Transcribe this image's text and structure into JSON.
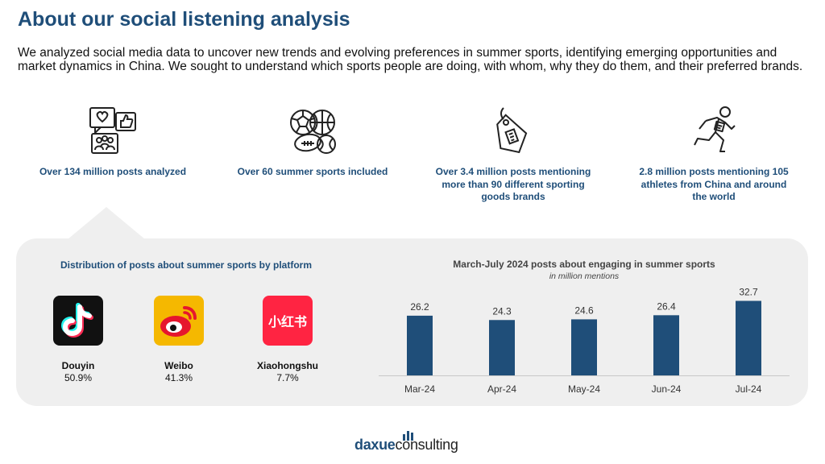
{
  "title": "About our social listening analysis",
  "intro": "We analyzed social media data to uncover new trends and evolving preferences in summer sports, identifying emerging opportunities and market dynamics in China. We sought to understand which sports people are doing, with whom, why they do them, and their preferred brands.",
  "stats": [
    {
      "icon": "social-media-icon",
      "text": "Over 134 million posts analyzed"
    },
    {
      "icon": "sports-balls-icon",
      "text": "Over 60 summer sports included"
    },
    {
      "icon": "price-tag-icon",
      "text": "Over 3.4 million posts mentioning more than 90 different sporting goods brands"
    },
    {
      "icon": "runner-icon",
      "text": "2.8 million posts mentioning 105 athletes from China and around the world"
    }
  ],
  "distribution": {
    "title": "Distribution of posts about summer sports by platform",
    "platforms": [
      {
        "name": "Douyin",
        "share": "50.9%",
        "icon": "douyin-logo-icon"
      },
      {
        "name": "Weibo",
        "share": "41.3%",
        "icon": "weibo-logo-icon"
      },
      {
        "name": "Xiaohongshu",
        "share": "7.7%",
        "icon": "xiaohongshu-logo-icon",
        "logo_text": "小红书"
      }
    ]
  },
  "chart_data": {
    "type": "bar",
    "title": "March-July 2024 posts about engaging in summer sports",
    "subtitle": "in million mentions",
    "categories": [
      "Mar-24",
      "Apr-24",
      "May-24",
      "Jun-24",
      "Jul-24"
    ],
    "values": [
      26.2,
      24.3,
      24.6,
      26.4,
      32.7
    ],
    "ylim": [
      0,
      35
    ],
    "grid": false,
    "bar_color": "#1f4e79"
  },
  "footer": {
    "brand_a": "daxue",
    "brand_b": "consulting"
  },
  "colors": {
    "accent": "#1f4e79",
    "panel": "#efefef"
  }
}
